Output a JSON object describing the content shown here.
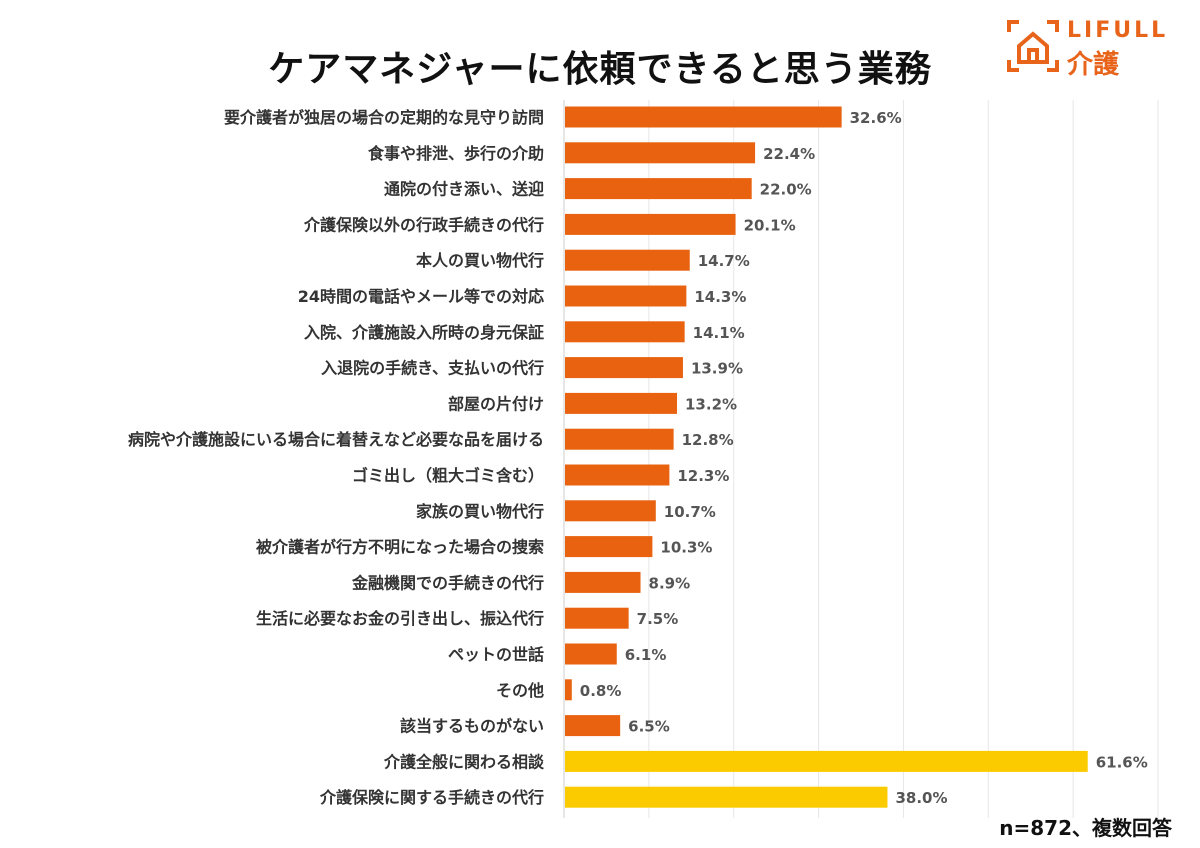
{
  "title": "ケアマネジャーに依頼できると思う業務",
  "logo": {
    "line1": "LIFULL",
    "line2": "介護",
    "color": "#E8641B"
  },
  "note": "n=872、複数回答",
  "chart_data": {
    "type": "bar",
    "orientation": "horizontal",
    "title": "ケアマネジャーに依頼できると思う業務",
    "xlim": [
      0,
      70
    ],
    "grid": true,
    "unit": "%",
    "colors": {
      "primary": "#E8620F",
      "highlight": "#FBCB00"
    },
    "categories": [
      "要介護者が独居の場合の定期的な見守り訪問",
      "食事や排泄、歩行の介助",
      "通院の付き添い、送迎",
      "介護保険以外の行政手続きの代行",
      "本人の買い物代行",
      "24時間の電話やメール等での対応",
      "入院、介護施設入所時の身元保証",
      "入退院の手続き、支払いの代行",
      "部屋の片付け",
      "病院や介護施設にいる場合に着替えなど必要な品を届ける",
      "ゴミ出し（粗大ゴミ含む）",
      "家族の買い物代行",
      "被介護者が行方不明になった場合の捜索",
      "金融機関での手続きの代行",
      "生活に必要なお金の引き出し、振込代行",
      "ペットの世話",
      "その他",
      "該当するものがない",
      "介護全般に関わる相談",
      "介護保険に関する手続きの代行"
    ],
    "values": [
      32.6,
      22.4,
      22.0,
      20.1,
      14.7,
      14.3,
      14.1,
      13.9,
      13.2,
      12.8,
      12.3,
      10.7,
      10.3,
      8.9,
      7.5,
      6.1,
      0.8,
      6.5,
      61.6,
      38.0
    ],
    "labels": [
      "32.6%",
      "22.4%",
      "22.0%",
      "20.1%",
      "14.7%",
      "14.3%",
      "14.1%",
      "13.9%",
      "13.2%",
      "12.8%",
      "12.3%",
      "10.7%",
      "10.3%",
      "8.9%",
      "7.5%",
      "6.1%",
      "0.8%",
      "6.5%",
      "61.6%",
      "38.0%"
    ],
    "highlighted": [
      false,
      false,
      false,
      false,
      false,
      false,
      false,
      false,
      false,
      false,
      false,
      false,
      false,
      false,
      false,
      false,
      false,
      false,
      true,
      true
    ]
  }
}
